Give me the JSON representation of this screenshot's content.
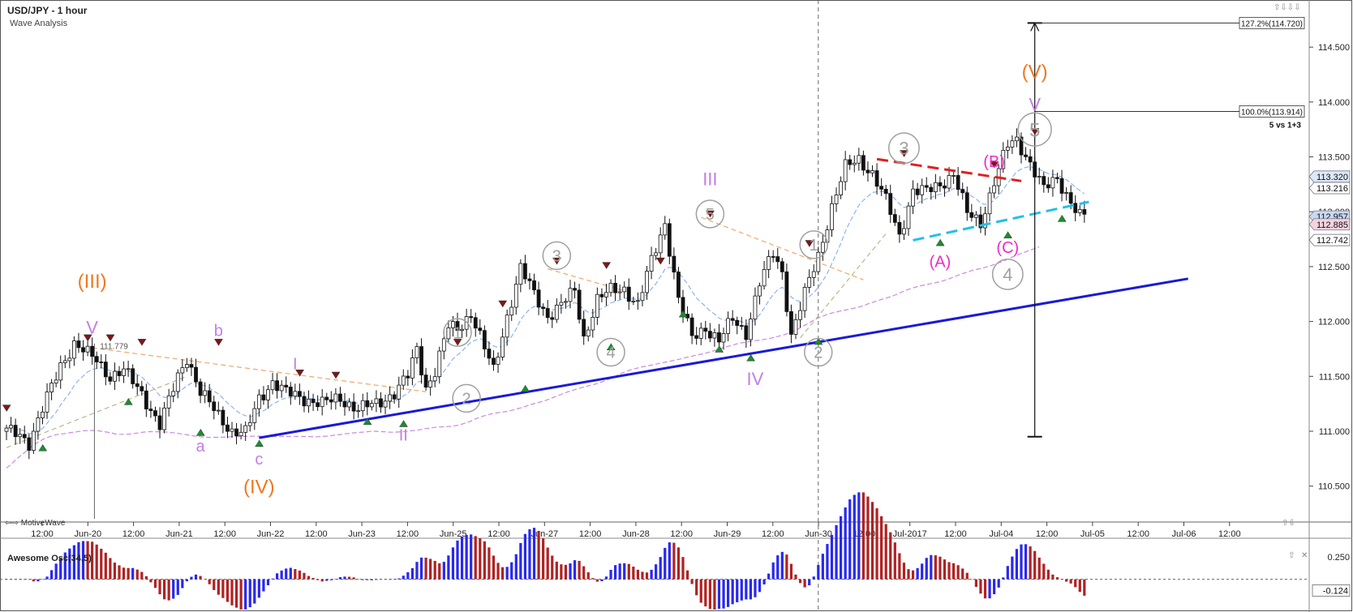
{
  "header": {
    "title": "USD/JPY - 1 hour",
    "subtitle": "Wave Analysis"
  },
  "brand": {
    "label": "MotiveWave"
  },
  "window_controls": {
    "top": "⇧⇩⇩⇩",
    "price_panel": "⇧⇩",
    "osc_panel": "⇧",
    "close": "✕",
    "arrows_left": "⇦⇨"
  },
  "chart_data": {
    "type": "candlestick",
    "symbol": "USD/JPY",
    "timeframe": "1 hour",
    "price_axis": {
      "range": [
        110.35,
        114.9
      ],
      "ticks": [
        110.5,
        111.0,
        111.5,
        112.0,
        112.5,
        113.0,
        113.5,
        114.0,
        114.5
      ],
      "tick_labels": [
        "110.500",
        "111.000",
        "111.500",
        "112.000",
        "112.500",
        "113.000",
        "113.500",
        "114.000",
        "114.500"
      ]
    },
    "time_axis": {
      "labels": [
        "12:00",
        "Jun-20",
        "12:00",
        "Jun-21",
        "12:00",
        "Jun-22",
        "12:00",
        "Jun-23",
        "12:00",
        "Jun-25",
        "12:00",
        "Jun-27",
        "12:00",
        "Jun-28",
        "12:00",
        "Jun-29",
        "12:00",
        "Jun-30",
        "12:00",
        "Jul-2017",
        "12:00",
        "Jul-04",
        "12:00",
        "Jul-05",
        "12:00",
        "Jul-06",
        "12:00"
      ]
    },
    "price_flags": [
      {
        "label": "113.320",
        "value": 113.32,
        "color": "#dde8f8"
      },
      {
        "label": "113.216",
        "value": 113.216,
        "color": "#ffffff"
      },
      {
        "label": "112.957",
        "value": 112.957,
        "color": "#c8d8f0"
      },
      {
        "label": "112.885",
        "value": 112.885,
        "color": "#f3d3dd"
      },
      {
        "label": "112.742",
        "value": 112.742,
        "color": "#ffffff"
      }
    ],
    "close_anchors": [
      [
        0,
        111.0
      ],
      [
        3,
        110.97
      ],
      [
        5,
        110.9
      ],
      [
        8,
        111.2
      ],
      [
        12,
        111.6
      ],
      [
        15,
        111.8
      ],
      [
        18,
        111.7
      ],
      [
        20,
        111.65
      ],
      [
        23,
        111.5
      ],
      [
        26,
        111.55
      ],
      [
        30,
        111.35
      ],
      [
        34,
        111.05
      ],
      [
        38,
        111.5
      ],
      [
        40,
        111.68
      ],
      [
        43,
        111.35
      ],
      [
        47,
        111.15
      ],
      [
        50,
        111.0
      ],
      [
        53,
        110.98
      ],
      [
        56,
        111.3
      ],
      [
        59,
        111.45
      ],
      [
        62,
        111.35
      ],
      [
        66,
        111.3
      ],
      [
        70,
        111.25
      ],
      [
        74,
        111.3
      ],
      [
        78,
        111.2
      ],
      [
        82,
        111.25
      ],
      [
        86,
        111.35
      ],
      [
        89,
        111.5
      ],
      [
        91,
        111.75
      ],
      [
        93,
        111.4
      ],
      [
        95,
        111.55
      ],
      [
        98,
        111.95
      ],
      [
        100,
        111.93
      ],
      [
        103,
        112.08
      ],
      [
        106,
        111.75
      ],
      [
        108,
        111.55
      ],
      [
        111,
        112.05
      ],
      [
        114,
        112.48
      ],
      [
        117,
        112.25
      ],
      [
        120,
        112.05
      ],
      [
        123,
        112.15
      ],
      [
        126,
        112.28
      ],
      [
        128,
        111.85
      ],
      [
        131,
        112.2
      ],
      [
        134,
        112.28
      ],
      [
        137,
        112.3
      ],
      [
        140,
        112.15
      ],
      [
        143,
        112.55
      ],
      [
        146,
        112.9
      ],
      [
        149,
        112.2
      ],
      [
        152,
        111.85
      ],
      [
        155,
        111.95
      ],
      [
        158,
        111.82
      ],
      [
        161,
        112.02
      ],
      [
        164,
        111.9
      ],
      [
        167,
        112.35
      ],
      [
        170,
        112.62
      ],
      [
        172,
        112.45
      ],
      [
        174,
        111.88
      ],
      [
        177,
        112.25
      ],
      [
        180,
        112.6
      ],
      [
        183,
        113.05
      ],
      [
        186,
        113.4
      ],
      [
        189,
        113.48
      ],
      [
        192,
        113.35
      ],
      [
        195,
        113.1
      ],
      [
        198,
        112.78
      ],
      [
        201,
        113.2
      ],
      [
        204,
        113.18
      ],
      [
        207,
        113.25
      ],
      [
        210,
        113.35
      ],
      [
        213,
        112.98
      ],
      [
        216,
        112.9
      ],
      [
        219,
        113.28
      ],
      [
        222,
        113.6
      ],
      [
        224,
        113.65
      ],
      [
        227,
        113.45
      ],
      [
        230,
        113.2
      ],
      [
        233,
        113.3
      ],
      [
        236,
        113.1
      ],
      [
        238,
        112.96
      ]
    ],
    "ema_fast_color": "#8fb4f0",
    "ma_slow_color": "#cc88dd",
    "trendlines": [
      {
        "name": "support",
        "color": "#1a1ad6",
        "from": [
          56,
          110.94
        ],
        "to": [
          262,
          112.39
        ]
      },
      {
        "name": "resistance",
        "color": "#e02020",
        "from": [
          193,
          113.48
        ],
        "to": [
          225,
          113.28
        ]
      },
      {
        "name": "channel",
        "color": "#22c0e8",
        "from": [
          201,
          112.74
        ],
        "to": [
          240,
          113.09
        ]
      }
    ],
    "guide_lines": [
      {
        "color": "#f0a868",
        "from": [
          19,
          111.76
        ],
        "to": [
          93,
          111.36
        ]
      },
      {
        "color": "#f0a868",
        "from": [
          120,
          112.48
        ],
        "to": [
          137,
          112.28
        ]
      },
      {
        "color": "#f0a868",
        "from": [
          154,
          112.95
        ],
        "to": [
          190,
          112.38
        ]
      },
      {
        "color": "#b9b98a",
        "from": [
          0,
          110.85
        ],
        "to": [
          40,
          111.5
        ]
      },
      {
        "color": "#b9b98a",
        "from": [
          176,
          111.85
        ],
        "to": [
          195,
          112.8
        ]
      }
    ],
    "fibonacci": [
      {
        "label": "127.2%(114.720)",
        "value": 114.72
      },
      {
        "label": "100.0%(113.914)",
        "value": 113.914
      }
    ],
    "measure_line": {
      "from": 110.95,
      "to": 114.72,
      "note": "5 vs 1+3"
    },
    "wave_labels": [
      {
        "text": "(III)",
        "x": 19,
        "price": 112.37,
        "color": "#f07820",
        "style": "plain",
        "size": 24
      },
      {
        "text": "V",
        "x": 19,
        "price": 111.95,
        "color": "#c47ee8",
        "style": "plain",
        "size": 22
      },
      {
        "text": "b",
        "x": 47,
        "price": 111.92,
        "color": "#c47ee8",
        "style": "plain",
        "size": 20
      },
      {
        "text": "a",
        "x": 43,
        "price": 110.87,
        "color": "#c47ee8",
        "style": "plain",
        "size": 20
      },
      {
        "text": "c",
        "x": 56,
        "price": 110.75,
        "color": "#c47ee8",
        "style": "plain",
        "size": 20
      },
      {
        "text": "(IV)",
        "x": 56,
        "price": 110.5,
        "color": "#f07820",
        "style": "plain",
        "size": 24
      },
      {
        "text": "I",
        "x": 64,
        "price": 111.62,
        "color": "#c47ee8",
        "style": "plain",
        "size": 20
      },
      {
        "text": "II",
        "x": 88,
        "price": 110.97,
        "color": "#c47ee8",
        "style": "plain",
        "size": 20
      },
      {
        "text": "1",
        "x": 100,
        "price": 111.9,
        "color": "#a0a0a0",
        "style": "circle",
        "size": 20
      },
      {
        "text": "2",
        "x": 102,
        "price": 111.3,
        "color": "#a0a0a0",
        "style": "circle",
        "size": 20
      },
      {
        "text": "3",
        "x": 122,
        "price": 112.6,
        "color": "#a0a0a0",
        "style": "circle",
        "size": 20
      },
      {
        "text": "4",
        "x": 134,
        "price": 111.72,
        "color": "#a0a0a0",
        "style": "circle",
        "size": 20
      },
      {
        "text": "III",
        "x": 156,
        "price": 113.3,
        "color": "#c47ee8",
        "style": "plain",
        "size": 22
      },
      {
        "text": "5",
        "x": 156,
        "price": 112.98,
        "color": "#a0a0a0",
        "style": "circle",
        "size": 20
      },
      {
        "text": "IV",
        "x": 166,
        "price": 111.48,
        "color": "#c47ee8",
        "style": "plain",
        "size": 22
      },
      {
        "text": "1",
        "x": 179,
        "price": 112.7,
        "color": "#a0a0a0",
        "style": "circle",
        "size": 20
      },
      {
        "text": "2",
        "x": 180,
        "price": 111.72,
        "color": "#a0a0a0",
        "style": "circle",
        "size": 20
      },
      {
        "text": "3",
        "x": 199,
        "price": 113.58,
        "color": "#a0a0a0",
        "style": "circle",
        "size": 22
      },
      {
        "text": "(A)",
        "x": 207,
        "price": 112.55,
        "color": "#ee2bc8",
        "style": "plain",
        "size": 20
      },
      {
        "text": "(B)",
        "x": 219,
        "price": 113.46,
        "color": "#ee2bc8",
        "style": "plain",
        "size": 20
      },
      {
        "text": "(C)",
        "x": 222,
        "price": 112.68,
        "color": "#ee2bc8",
        "style": "plain",
        "size": 20
      },
      {
        "text": "4",
        "x": 222,
        "price": 112.43,
        "color": "#a0a0a0",
        "style": "circle",
        "size": 22
      },
      {
        "text": "(V)",
        "x": 228,
        "price": 114.28,
        "color": "#f07820",
        "style": "plain",
        "size": 24
      },
      {
        "text": "V",
        "x": 228,
        "price": 113.98,
        "color": "#c47ee8",
        "style": "plain",
        "size": 22
      },
      {
        "text": "5",
        "x": 228,
        "price": 113.75,
        "color": "#a0a0a0",
        "style": "circle",
        "size": 24
      }
    ],
    "swing_markers": [
      {
        "kind": "high",
        "x": 0,
        "price": 111.18
      },
      {
        "kind": "low",
        "x": 8,
        "price": 110.88
      },
      {
        "kind": "high",
        "x": 18,
        "price": 111.82
      },
      {
        "kind": "high",
        "x": 23,
        "price": 111.82
      },
      {
        "kind": "low",
        "x": 27,
        "price": 111.3
      },
      {
        "kind": "high",
        "x": 30,
        "price": 111.78
      },
      {
        "kind": "low",
        "x": 43,
        "price": 111.02
      },
      {
        "kind": "high",
        "x": 47,
        "price": 111.78
      },
      {
        "kind": "low",
        "x": 56,
        "price": 110.92
      },
      {
        "kind": "high",
        "x": 65,
        "price": 111.5
      },
      {
        "kind": "high",
        "x": 73,
        "price": 111.48
      },
      {
        "kind": "low",
        "x": 80,
        "price": 111.12
      },
      {
        "kind": "low",
        "x": 88,
        "price": 111.1
      },
      {
        "kind": "high",
        "x": 100,
        "price": 111.78
      },
      {
        "kind": "high",
        "x": 110,
        "price": 112.13
      },
      {
        "kind": "low",
        "x": 115,
        "price": 111.42
      },
      {
        "kind": "high",
        "x": 122,
        "price": 112.52
      },
      {
        "kind": "high",
        "x": 133,
        "price": 112.48
      },
      {
        "kind": "low",
        "x": 134,
        "price": 111.8
      },
      {
        "kind": "high",
        "x": 145,
        "price": 112.52
      },
      {
        "kind": "low",
        "x": 150,
        "price": 112.1
      },
      {
        "kind": "high",
        "x": 156,
        "price": 112.95
      },
      {
        "kind": "low",
        "x": 158,
        "price": 111.78
      },
      {
        "kind": "low",
        "x": 165,
        "price": 111.7
      },
      {
        "kind": "high",
        "x": 178,
        "price": 112.68
      },
      {
        "kind": "low",
        "x": 180,
        "price": 111.85
      },
      {
        "kind": "high",
        "x": 199,
        "price": 113.5
      },
      {
        "kind": "low",
        "x": 207,
        "price": 112.75
      },
      {
        "kind": "high",
        "x": 219,
        "price": 113.4
      },
      {
        "kind": "low",
        "x": 222,
        "price": 112.82
      },
      {
        "kind": "high",
        "x": 228,
        "price": 113.7
      },
      {
        "kind": "low",
        "x": 234,
        "price": 112.97
      }
    ],
    "last_high_label": "111.779",
    "oscillator": {
      "name": "Awesome Osc(34,5)",
      "ticks": [
        0.25
      ],
      "tick_labels": [
        "0.250"
      ],
      "last_value_label": "-0.124",
      "range": [
        -0.3,
        0.42
      ],
      "up_color": "#2828f0",
      "down_color": "#b02222"
    }
  }
}
